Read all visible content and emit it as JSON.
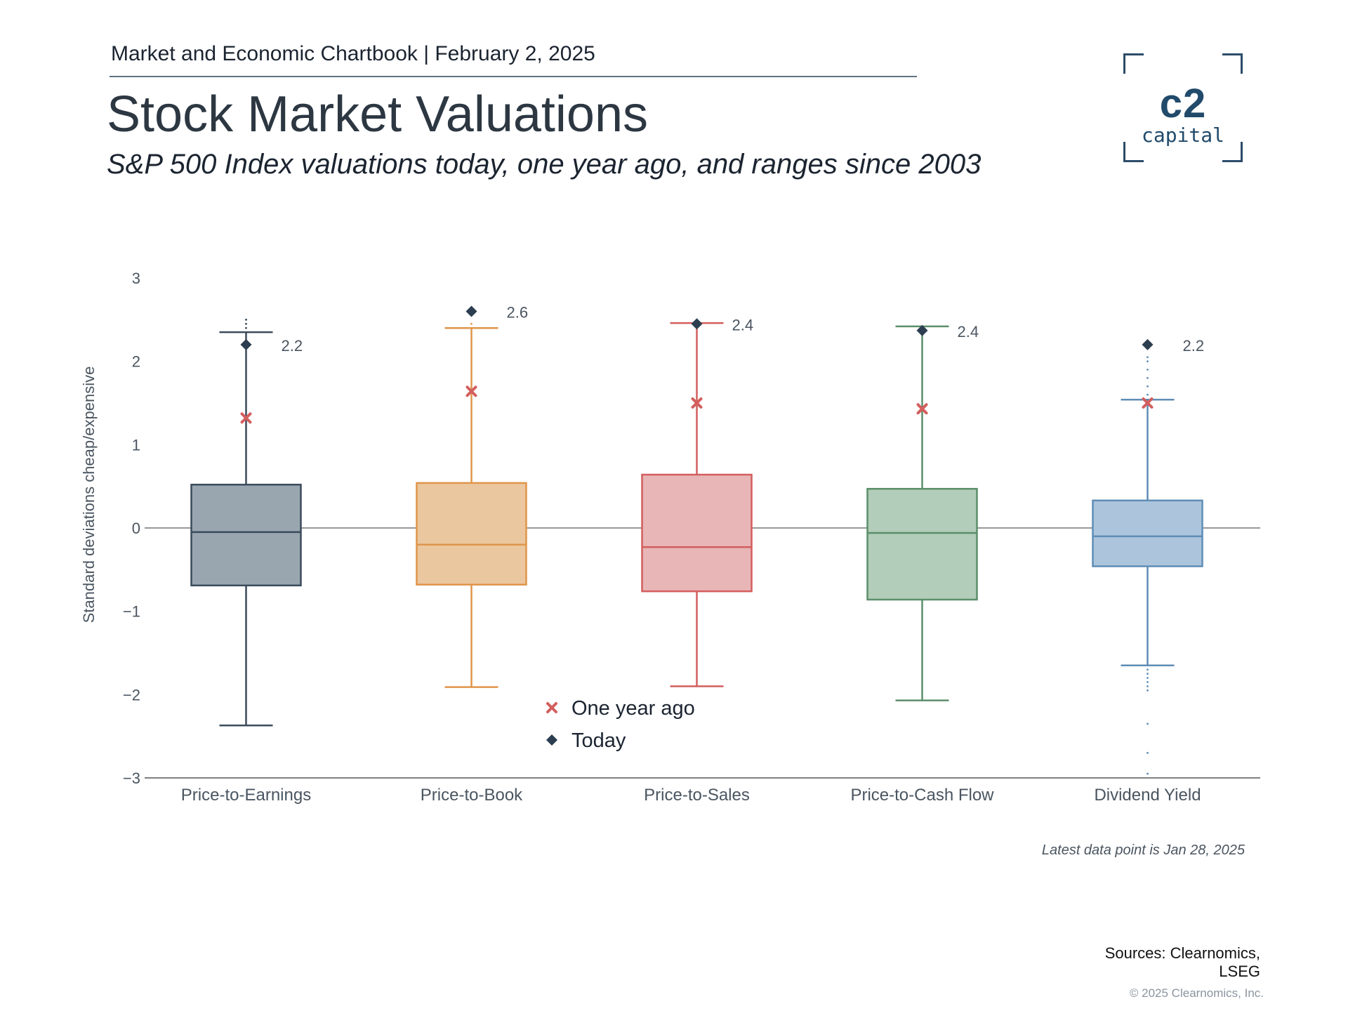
{
  "header": {
    "report_line": "Market and Economic Chartbook | February 2, 2025",
    "title": "Stock Market Valuations",
    "subtitle": "S&P 500 Index valuations today, one year ago, and ranges since 2003"
  },
  "logo": {
    "main": "c2",
    "sub": "capital"
  },
  "chart_data": {
    "type": "box",
    "title": "Stock Market Valuations",
    "ylabel": "Standard deviations cheap/expensive",
    "ylim": [
      -3,
      3
    ],
    "yticks": [
      3,
      2,
      1,
      0,
      -1,
      -2,
      -3
    ],
    "ytick_labels": [
      "3",
      "2",
      "1",
      "0",
      "−1",
      "−2",
      "−3"
    ],
    "categories": [
      "Price-to-Earnings",
      "Price-to-Book",
      "Price-to-Sales",
      "Price-to-Cash Flow",
      "Dividend Yield"
    ],
    "boxes": [
      {
        "name": "Price-to-Earnings",
        "whisker_low": -2.37,
        "q1": -0.69,
        "median": -0.05,
        "q3": 0.52,
        "whisker_high": 2.35,
        "outliers": [
          2.4,
          2.45,
          2.5
        ],
        "today": 2.2,
        "one_year_ago": 1.32,
        "today_label": "2.2",
        "color": "#3b4b5c",
        "fill": "#9aa6af"
      },
      {
        "name": "Price-to-Book",
        "whisker_low": -1.91,
        "q1": -0.68,
        "median": -0.2,
        "q3": 0.54,
        "whisker_high": 2.4,
        "outliers": [
          2.45
        ],
        "today": 2.6,
        "one_year_ago": 1.64,
        "today_label": "2.6",
        "color": "#e0954a",
        "fill": "#ebc7a0"
      },
      {
        "name": "Price-to-Sales",
        "whisker_low": -1.9,
        "q1": -0.76,
        "median": -0.23,
        "q3": 0.64,
        "whisker_high": 2.46,
        "outliers": [],
        "today": 2.45,
        "one_year_ago": 1.5,
        "today_label": "2.4",
        "color": "#d35e5e",
        "fill": "#e8b6b6"
      },
      {
        "name": "Price-to-Cash Flow",
        "whisker_low": -2.07,
        "q1": -0.86,
        "median": -0.06,
        "q3": 0.47,
        "whisker_high": 2.42,
        "outliers": [],
        "today": 2.37,
        "one_year_ago": 1.43,
        "today_label": "2.4",
        "color": "#5b8f6a",
        "fill": "#b2cdb9"
      },
      {
        "name": "Dividend Yield",
        "whisker_low": -1.65,
        "q1": -0.46,
        "median": -0.1,
        "q3": 0.33,
        "whisker_high": 1.54,
        "outliers": [
          1.6,
          1.7,
          1.8,
          1.9,
          2.0,
          2.05,
          -1.7,
          -1.75,
          -1.8,
          -1.85,
          -1.9,
          -1.95,
          -2.35,
          -2.7,
          -2.95
        ],
        "today": 2.2,
        "one_year_ago": 1.5,
        "today_label": "2.2",
        "color": "#5f8db5",
        "fill": "#acc5dd"
      }
    ],
    "legend": [
      {
        "label": "One year ago",
        "marker": "x",
        "color": "#d35e5e"
      },
      {
        "label": "Today",
        "marker": "diamond",
        "color": "#2c3e50"
      }
    ],
    "legend_position": "bottom-center",
    "grid": false
  },
  "footer": {
    "note": "Latest data point is Jan 28, 2025",
    "sources_line1": "Sources: Clearnomics,",
    "sources_line2": "LSEG",
    "copyright": "© 2025 Clearnomics, Inc."
  }
}
